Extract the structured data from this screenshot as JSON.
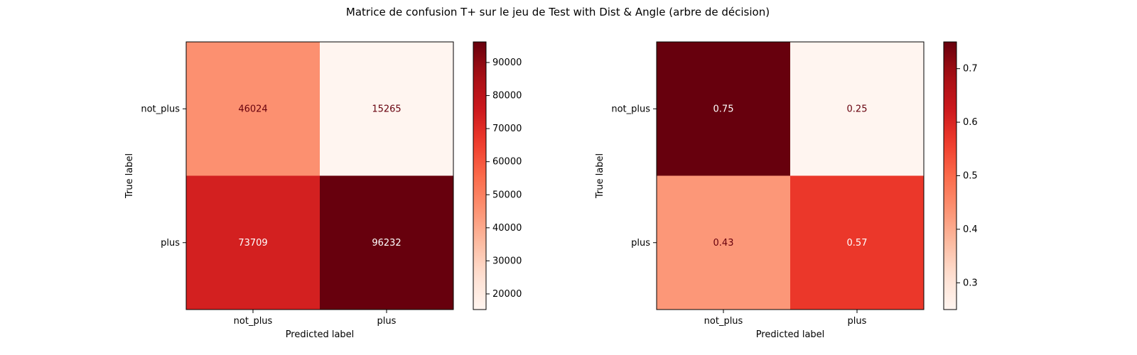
{
  "suptitle": "Matrice de confusion T+ sur le jeu de Test with Dist & Angle (arbre de décision)",
  "chart_data": [
    {
      "type": "heatmap",
      "cmap": "Reds",
      "xlabel": "Predicted label",
      "ylabel": "True label",
      "categories_x": [
        "not_plus",
        "plus"
      ],
      "categories_y": [
        "not_plus",
        "plus"
      ],
      "values": [
        [
          46024,
          15265
        ],
        [
          73709,
          96232
        ]
      ],
      "value_labels": [
        [
          "46024",
          "15265"
        ],
        [
          "73709",
          "96232"
        ]
      ],
      "vmin": 15265,
      "vmax": 96232,
      "colorbar_ticks": [
        20000,
        30000,
        40000,
        50000,
        60000,
        70000,
        80000,
        90000
      ],
      "colorbar_tick_labels": [
        "20000",
        "30000",
        "40000",
        "50000",
        "60000",
        "70000",
        "80000",
        "90000"
      ]
    },
    {
      "type": "heatmap",
      "cmap": "Reds",
      "xlabel": "Predicted label",
      "ylabel": "True label",
      "categories_x": [
        "not_plus",
        "plus"
      ],
      "categories_y": [
        "not_plus",
        "plus"
      ],
      "values": [
        [
          0.75,
          0.25
        ],
        [
          0.43,
          0.57
        ]
      ],
      "value_labels": [
        [
          "0.75",
          "0.25"
        ],
        [
          "0.43",
          "0.57"
        ]
      ],
      "vmin": 0.25,
      "vmax": 0.75,
      "colorbar_ticks": [
        0.3,
        0.4,
        0.5,
        0.6,
        0.7
      ],
      "colorbar_tick_labels": [
        "0.3",
        "0.4",
        "0.5",
        "0.6",
        "0.7"
      ]
    }
  ]
}
